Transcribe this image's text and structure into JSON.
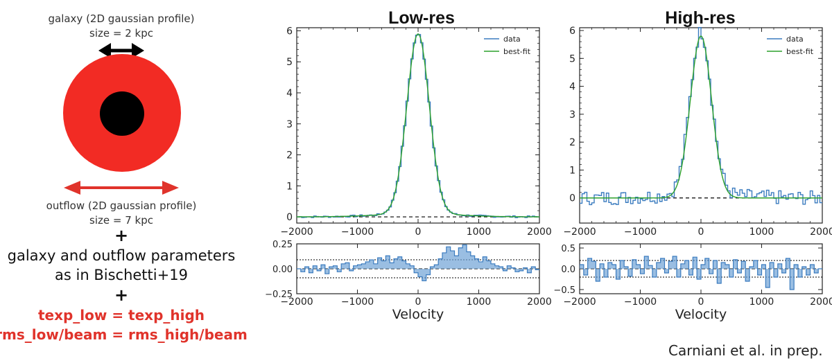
{
  "left": {
    "galaxy_label_line1": "galaxy (2D gaussian profile)",
    "galaxy_label_line2": "size = 2 kpc",
    "outflow_label_line1": "outflow (2D gaussian profile)",
    "outflow_label_line2": "size = 7 kpc",
    "plus1": "+",
    "params_line1": "galaxy and outflow parameters",
    "params_line2": "as in Bischetti+19",
    "plus2": "+",
    "red_line1": "texp_low = texp_high",
    "red_line2": "rms_low/beam = rms_high/beam",
    "colors": {
      "outflow": "#f22b24",
      "galaxy": "#000000",
      "arrow_red": "#e0332b",
      "arrow_black": "#000000"
    }
  },
  "credit": "Carniani et al. in prep.",
  "chart_data": [
    {
      "type": "line",
      "title": "Low-res",
      "xlabel": "",
      "ylabel": "",
      "xlim": [
        -2000,
        2000
      ],
      "ylim": [
        -0.2,
        6.1
      ],
      "xticks": [
        -2000,
        -1000,
        0,
        1000,
        2000
      ],
      "xtick_labels": [
        "−2000",
        "−1000",
        "0",
        "1000",
        "2000"
      ],
      "yticks": [
        0,
        1,
        2,
        3,
        4,
        5,
        6
      ],
      "legend": {
        "placement": "top-right",
        "entries": [
          "data",
          "best-fit"
        ]
      },
      "colors": {
        "data": "#3a7bbf",
        "best-fit": "#2ca02c",
        "zero": "#000000"
      },
      "series": [
        {
          "name": "best-fit",
          "peak": 5.8,
          "center": 0,
          "sigma": 185,
          "wing_amp": 0.1,
          "wing_sigma": 650
        },
        {
          "name": "data",
          "peak": 5.8,
          "center": 0,
          "sigma": 185,
          "noise": 0.03,
          "bin": 40,
          "wing_amp": 0.1,
          "wing_sigma": 650
        }
      ],
      "residual": {
        "xlabel": "Velocity",
        "ylim": [
          -0.25,
          0.25
        ],
        "yticks": [
          -0.25,
          0.0,
          0.25
        ],
        "ytick_labels": [
          "−0.25",
          "0.00",
          "0.25"
        ],
        "band": 0.09,
        "values": [
          0.0,
          -0.03,
          0.02,
          -0.04,
          0.03,
          -0.02,
          0.04,
          -0.05,
          0.02,
          0.03,
          -0.03,
          0.05,
          0.06,
          -0.02,
          0.03,
          0.04,
          0.05,
          0.07,
          0.09,
          0.05,
          0.11,
          0.08,
          0.13,
          0.06,
          0.1,
          0.12,
          0.08,
          0.05,
          0.03,
          -0.04,
          -0.08,
          -0.12,
          -0.06,
          0.02,
          0.04,
          0.1,
          0.16,
          0.22,
          0.18,
          0.13,
          0.21,
          0.24,
          0.17,
          0.13,
          0.1,
          0.07,
          0.12,
          0.08,
          0.05,
          0.03,
          0.02,
          -0.02,
          0.03,
          0.01,
          -0.03,
          -0.02,
          0.01,
          -0.04,
          0.02,
          -0.01
        ]
      }
    },
    {
      "type": "line",
      "title": "High-res",
      "xlabel": "",
      "ylabel": "",
      "xlim": [
        -2000,
        2000
      ],
      "ylim": [
        -0.9,
        6.1
      ],
      "xticks": [
        -2000,
        -1000,
        0,
        1000,
        2000
      ],
      "xtick_labels": [
        "−2000",
        "−1000",
        "0",
        "1000",
        "2000"
      ],
      "yticks": [
        0,
        1,
        2,
        3,
        4,
        5,
        6
      ],
      "legend": {
        "placement": "top-right",
        "entries": [
          "data",
          "best-fit"
        ]
      },
      "colors": {
        "data": "#3a7bbf",
        "best-fit": "#2ca02c",
        "zero": "#000000"
      },
      "series": [
        {
          "name": "best-fit",
          "peak": 5.8,
          "center": 0,
          "sigma": 175,
          "wing_amp": 0.0,
          "wing_sigma": 600
        },
        {
          "name": "data",
          "peak": 5.8,
          "center": 0,
          "sigma": 175,
          "noise": 0.17,
          "bin": 40,
          "wing_amp": 0.15,
          "wing_sigma": 600
        }
      ],
      "residual": {
        "xlabel": "Velocity",
        "ylim": [
          -0.6,
          0.6
        ],
        "yticks": [
          -0.5,
          0.0,
          0.5
        ],
        "ytick_labels": [
          "−0.5",
          "0.0",
          "0.5"
        ],
        "band": 0.2,
        "values": [
          0.1,
          -0.15,
          0.25,
          0.18,
          -0.3,
          0.12,
          -0.2,
          0.15,
          0.1,
          -0.25,
          0.2,
          0.05,
          -0.18,
          0.22,
          0.1,
          -0.12,
          0.3,
          0.08,
          -0.2,
          0.15,
          0.25,
          -0.1,
          0.18,
          0.3,
          -0.2,
          0.12,
          0.2,
          -0.15,
          0.28,
          -0.25,
          0.1,
          0.25,
          -0.12,
          0.2,
          -0.35,
          0.15,
          0.1,
          -0.2,
          0.22,
          -0.1,
          0.18,
          -0.3,
          0.05,
          0.2,
          -0.15,
          0.1,
          -0.45,
          0.15,
          -0.2,
          0.12,
          -0.1,
          0.25,
          -0.5,
          0.1,
          -0.2,
          0.05,
          -0.15,
          0.1,
          -0.1,
          0.0
        ]
      }
    }
  ]
}
